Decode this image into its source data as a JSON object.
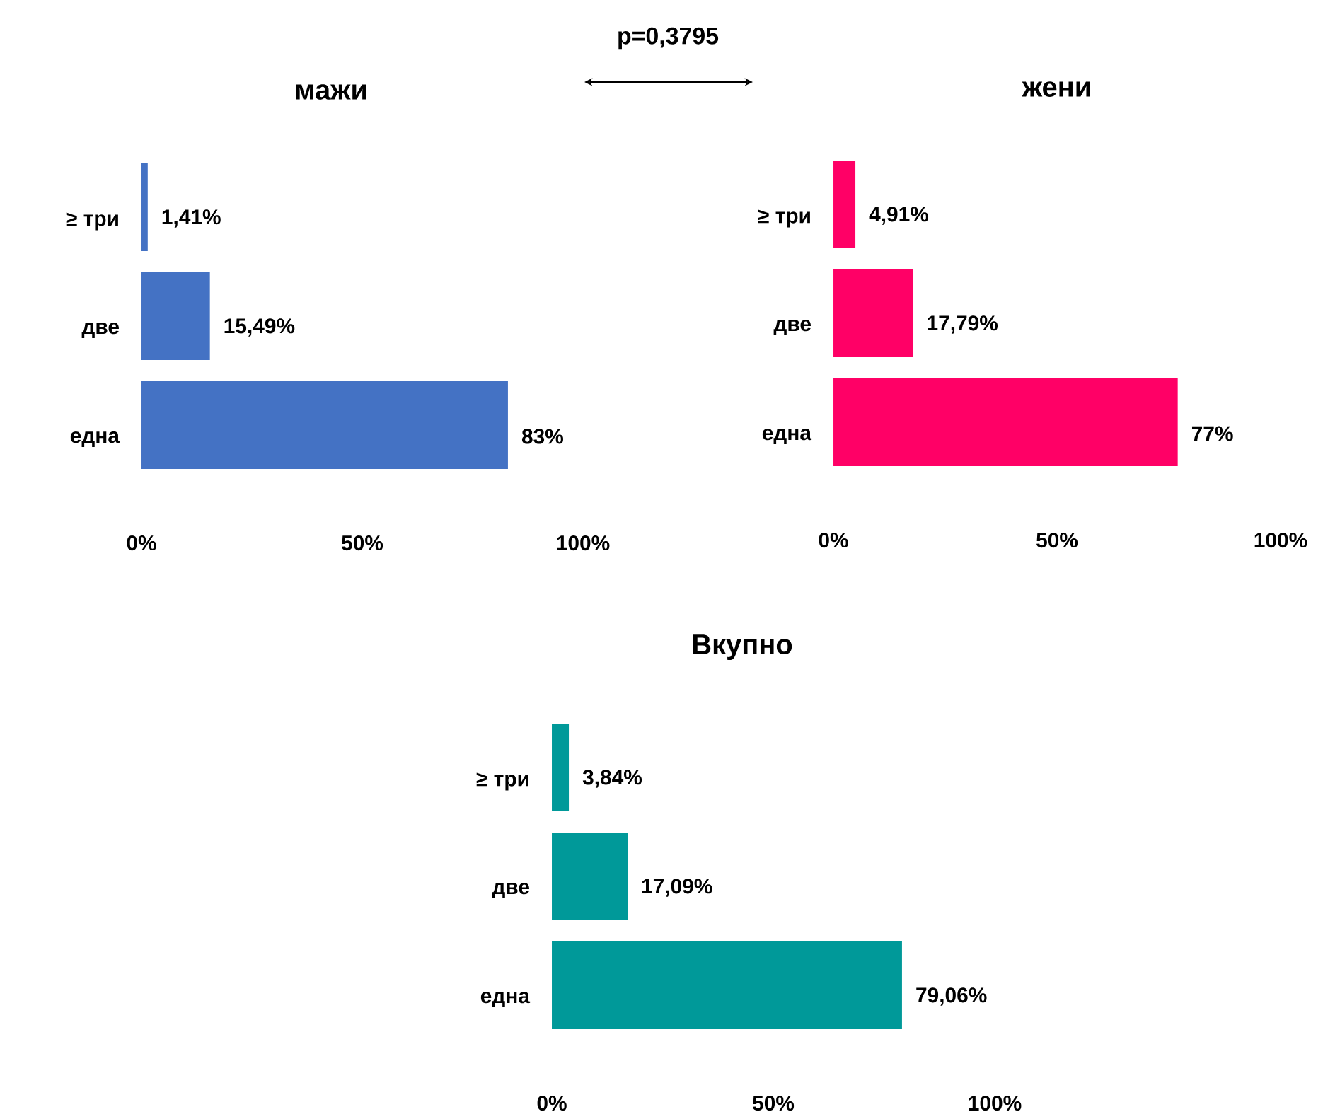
{
  "chart_data": [
    {
      "type": "bar",
      "orientation": "horizontal",
      "title": "мажи",
      "categories": [
        "≥ три",
        "две",
        "една"
      ],
      "values": [
        1.41,
        15.49,
        83
      ],
      "value_labels": [
        "1,41%",
        "15,49%",
        "83%"
      ],
      "color": "#4472c4",
      "xlim": [
        0,
        100
      ],
      "xticks": [
        {
          "value": 0,
          "label": "0%"
        },
        {
          "value": 50,
          "label": "50%"
        },
        {
          "value": 100,
          "label": "100%"
        }
      ],
      "annotations": [
        "p=0,3795"
      ]
    },
    {
      "type": "bar",
      "orientation": "horizontal",
      "title": "жени",
      "categories": [
        "≥ три",
        "две",
        "една"
      ],
      "values": [
        4.91,
        17.79,
        77
      ],
      "value_labels": [
        "4,91%",
        "17,79%",
        "77%"
      ],
      "color": "#ff0066",
      "xlim": [
        0,
        100
      ],
      "xticks": [
        {
          "value": 0,
          "label": "0%"
        },
        {
          "value": 50,
          "label": "50%"
        },
        {
          "value": 100,
          "label": "100%"
        }
      ]
    },
    {
      "type": "bar",
      "orientation": "horizontal",
      "title": "Вкупно",
      "categories": [
        "≥ три",
        "две",
        "една"
      ],
      "values": [
        3.84,
        17.09,
        79.06
      ],
      "value_labels": [
        "3,84%",
        "17,09%",
        "79,06%"
      ],
      "color": "#009999",
      "xlim": [
        0,
        100
      ],
      "xticks": [
        {
          "value": 0,
          "label": "0%"
        },
        {
          "value": 50,
          "label": "50%"
        },
        {
          "value": 100,
          "label": "100%"
        }
      ]
    }
  ]
}
